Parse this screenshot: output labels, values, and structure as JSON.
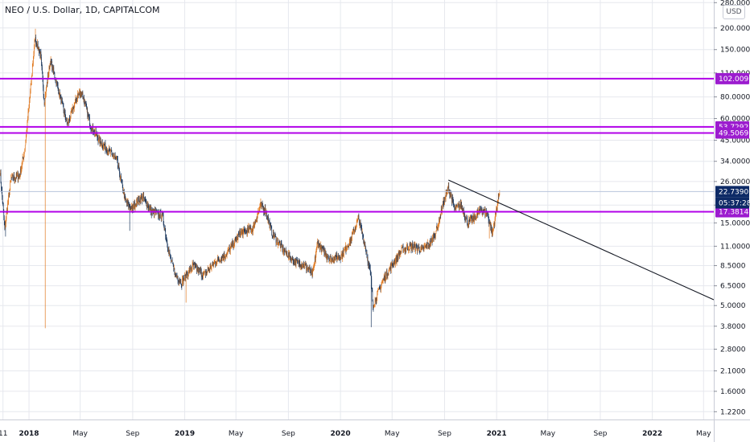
{
  "header": {
    "symbol_title": "NEO / U.S. Dollar, 1D, CAPITALCOM",
    "currency_button": "USD"
  },
  "colors": {
    "up": "#e0781e",
    "down": "#1e3a5f",
    "level_line": "#b100e8",
    "level_tag": "#9c1ccf",
    "price_tag": "#0d2a66",
    "trend_line": "#131722",
    "grid": "#e6e8ee",
    "axis_text": "#131722"
  },
  "chart_data": {
    "type": "candlestick",
    "y_scale": "log",
    "x_range": [
      "2017-10-25",
      "2022-05-25"
    ],
    "y_range": [
      1.1,
      290
    ],
    "y_ticks": [
      {
        "value": 280,
        "label": "280.0000"
      },
      {
        "value": 200,
        "label": "200.0000"
      },
      {
        "value": 150,
        "label": "150.0000"
      },
      {
        "value": 110,
        "label": "110.0000"
      },
      {
        "value": 80,
        "label": "80.0000"
      },
      {
        "value": 60,
        "label": "60.0000"
      },
      {
        "value": 45,
        "label": "45.0000"
      },
      {
        "value": 34,
        "label": "34.0000"
      },
      {
        "value": 26,
        "label": "26.0000"
      },
      {
        "value": 19,
        "label": "19.0000"
      },
      {
        "value": 15,
        "label": "15.0000"
      },
      {
        "value": 11,
        "label": "11.0000"
      },
      {
        "value": 8.5,
        "label": "8.5000"
      },
      {
        "value": 6.5,
        "label": "6.5000"
      },
      {
        "value": 5.0,
        "label": "5.0000"
      },
      {
        "value": 3.8,
        "label": "3.8000"
      },
      {
        "value": 2.8,
        "label": "2.8000"
      },
      {
        "value": 2.1,
        "label": "2.1000"
      },
      {
        "value": 1.6,
        "label": "1.6000"
      },
      {
        "value": 1.22,
        "label": "1.2200"
      }
    ],
    "x_ticks": [
      {
        "date": "2017-11-01",
        "label": "11",
        "bold": false
      },
      {
        "date": "2018-01-01",
        "label": "2018",
        "bold": true
      },
      {
        "date": "2018-05-01",
        "label": "May",
        "bold": false
      },
      {
        "date": "2018-09-01",
        "label": "Sep",
        "bold": false
      },
      {
        "date": "2019-01-01",
        "label": "2019",
        "bold": true
      },
      {
        "date": "2019-05-01",
        "label": "May",
        "bold": false
      },
      {
        "date": "2019-09-01",
        "label": "Sep",
        "bold": false
      },
      {
        "date": "2020-01-01",
        "label": "2020",
        "bold": true
      },
      {
        "date": "2020-05-01",
        "label": "May",
        "bold": false
      },
      {
        "date": "2020-09-01",
        "label": "Sep",
        "bold": false
      },
      {
        "date": "2021-01-01",
        "label": "2021",
        "bold": true
      },
      {
        "date": "2021-05-01",
        "label": "May",
        "bold": false
      },
      {
        "date": "2021-09-01",
        "label": "Sep",
        "bold": false
      },
      {
        "date": "2022-01-01",
        "label": "2022",
        "bold": true
      },
      {
        "date": "2022-05-01",
        "label": "May",
        "bold": false
      }
    ],
    "levels": [
      {
        "value": 102.0097,
        "label": "102.0097"
      },
      {
        "value": 53.7292,
        "label": "53.7292"
      },
      {
        "value": 49.5069,
        "label": "49.5069"
      },
      {
        "value": 17.3814,
        "label": "17.3814"
      }
    ],
    "last_price": {
      "value": 22.739,
      "label": "22.7390"
    },
    "countdown": {
      "label": "05:37:28"
    },
    "trendline": {
      "start": {
        "date": "2020-09-10",
        "value": 26.5
      },
      "end": {
        "date": "2022-05-25",
        "value": 5.4
      }
    },
    "anchors": [
      [
        "2017-10-25",
        30
      ],
      [
        "2017-11-05",
        14
      ],
      [
        "2017-11-20",
        27
      ],
      [
        "2017-12-10",
        28
      ],
      [
        "2017-12-22",
        40
      ],
      [
        "2018-01-03",
        80
      ],
      [
        "2018-01-15",
        175
      ],
      [
        "2018-01-28",
        140
      ],
      [
        "2018-02-06",
        75
      ],
      [
        "2018-02-20",
        130
      ],
      [
        "2018-03-10",
        90
      ],
      [
        "2018-04-01",
        55
      ],
      [
        "2018-04-25",
        82
      ],
      [
        "2018-05-05",
        85
      ],
      [
        "2018-05-25",
        55
      ],
      [
        "2018-06-15",
        45
      ],
      [
        "2018-07-10",
        38
      ],
      [
        "2018-07-25",
        35
      ],
      [
        "2018-08-15",
        20
      ],
      [
        "2018-08-30",
        18
      ],
      [
        "2018-09-10",
        20
      ],
      [
        "2018-09-25",
        21
      ],
      [
        "2018-10-15",
        17.5
      ],
      [
        "2018-11-10",
        16.5
      ],
      [
        "2018-11-25",
        10
      ],
      [
        "2018-12-10",
        7.5
      ],
      [
        "2018-12-25",
        6.8
      ],
      [
        "2019-01-20",
        8.5
      ],
      [
        "2019-02-15",
        7.5
      ],
      [
        "2019-03-15",
        9
      ],
      [
        "2019-04-10",
        10
      ],
      [
        "2019-05-10",
        13
      ],
      [
        "2019-06-10",
        14
      ],
      [
        "2019-06-28",
        19
      ],
      [
        "2019-07-10",
        17.5
      ],
      [
        "2019-07-25",
        13
      ],
      [
        "2019-08-20",
        10.5
      ],
      [
        "2019-09-15",
        9
      ],
      [
        "2019-10-10",
        8.5
      ],
      [
        "2019-10-28",
        7.5
      ],
      [
        "2019-11-08",
        11.5
      ],
      [
        "2019-11-25",
        10
      ],
      [
        "2019-12-10",
        9.2
      ],
      [
        "2020-01-05",
        9.8
      ],
      [
        "2020-01-25",
        12
      ],
      [
        "2020-02-12",
        16
      ],
      [
        "2020-02-28",
        11
      ],
      [
        "2020-03-12",
        7.5
      ],
      [
        "2020-03-17",
        5
      ],
      [
        "2020-04-10",
        7
      ],
      [
        "2020-04-30",
        8.5
      ],
      [
        "2020-05-25",
        10.5
      ],
      [
        "2020-06-15",
        11
      ],
      [
        "2020-07-10",
        10.5
      ],
      [
        "2020-07-30",
        11.5
      ],
      [
        "2020-08-15",
        14
      ],
      [
        "2020-08-28",
        19
      ],
      [
        "2020-09-10",
        24
      ],
      [
        "2020-09-25",
        18
      ],
      [
        "2020-10-10",
        19
      ],
      [
        "2020-10-25",
        15
      ],
      [
        "2020-11-10",
        16
      ],
      [
        "2020-11-25",
        18
      ],
      [
        "2020-12-10",
        17
      ],
      [
        "2020-12-22",
        13
      ],
      [
        "2021-01-05",
        21
      ],
      [
        "2021-01-08",
        22.74
      ]
    ],
    "spikes": [
      {
        "date": "2018-02-08",
        "low": 3.7
      },
      {
        "date": "2020-03-13",
        "low": 3.75
      },
      {
        "date": "2017-11-07",
        "low": 12.5
      },
      {
        "date": "2020-12-15",
        "low": 12.2
      },
      {
        "date": "2018-01-16",
        "high": 198
      },
      {
        "date": "2018-08-25",
        "low": 13.5
      },
      {
        "date": "2019-01-04",
        "low": 5.2
      }
    ]
  }
}
